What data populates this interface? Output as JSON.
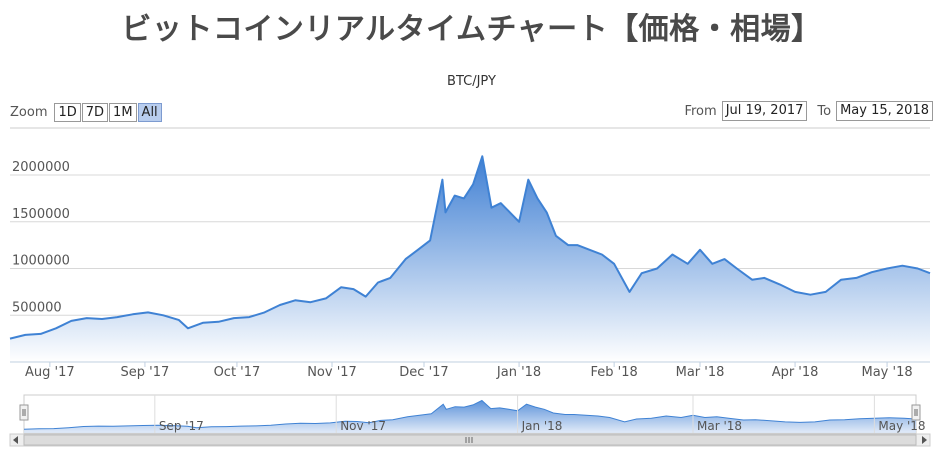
{
  "title": "ビットコインリアルタイムチャート【価格・相場】",
  "subtitle": "BTC/JPY",
  "zoom": {
    "label": "Zoom",
    "buttons": [
      "1D",
      "7D",
      "1M",
      "All"
    ],
    "active": "All"
  },
  "range": {
    "from_label": "From",
    "from_value": "Jul 19, 2017",
    "to_label": "To",
    "to_value": "May 15, 2018"
  },
  "colors": {
    "line": "#3f82d4",
    "fill_top": "#3f7fd3",
    "fill_bottom": "#ffffff",
    "grid": "#d8d8d8"
  },
  "chart_data": {
    "type": "area",
    "title": "",
    "subtitle": "BTC/JPY",
    "xlabel": "",
    "ylabel": "",
    "ylim": [
      0,
      2000000
    ],
    "yticks": [
      0,
      500000,
      1000000,
      1500000,
      2000000
    ],
    "xticks": [
      {
        "label": "Aug '17",
        "date": "2017-08-01"
      },
      {
        "label": "Sep '17",
        "date": "2017-09-01"
      },
      {
        "label": "Oct '17",
        "date": "2017-10-01"
      },
      {
        "label": "Nov '17",
        "date": "2017-11-01"
      },
      {
        "label": "Dec '17",
        "date": "2017-12-01"
      },
      {
        "label": "Jan '18",
        "date": "2018-01-01"
      },
      {
        "label": "Feb '18",
        "date": "2018-02-01"
      },
      {
        "label": "Mar '18",
        "date": "2018-03-01"
      },
      {
        "label": "Apr '18",
        "date": "2018-04-01"
      },
      {
        "label": "May '18",
        "date": "2018-05-01"
      }
    ],
    "xrange": [
      "2017-07-19",
      "2018-05-15"
    ],
    "navigator_ticks": [
      "Sep '17",
      "Nov '17",
      "Jan '18",
      "Mar '18",
      "May '18"
    ],
    "grid": true,
    "legend": "none",
    "series": [
      {
        "x": [
          "2017-07-19",
          "2017-07-24",
          "2017-07-29",
          "2017-08-03",
          "2017-08-08",
          "2017-08-13",
          "2017-08-18",
          "2017-08-23",
          "2017-08-28",
          "2017-09-02",
          "2017-09-07",
          "2017-09-12",
          "2017-09-15",
          "2017-09-20",
          "2017-09-25",
          "2017-09-30",
          "2017-10-05",
          "2017-10-10",
          "2017-10-15",
          "2017-10-20",
          "2017-10-25",
          "2017-10-30",
          "2017-11-04",
          "2017-11-08",
          "2017-11-12",
          "2017-11-16",
          "2017-11-20",
          "2017-11-25",
          "2017-11-29",
          "2017-12-03",
          "2017-12-07",
          "2017-12-08",
          "2017-12-11",
          "2017-12-14",
          "2017-12-17",
          "2017-12-20",
          "2017-12-23",
          "2017-12-26",
          "2017-12-29",
          "2018-01-01",
          "2018-01-04",
          "2018-01-07",
          "2018-01-10",
          "2018-01-13",
          "2018-01-17",
          "2018-01-20",
          "2018-01-24",
          "2018-01-28",
          "2018-02-01",
          "2018-02-06",
          "2018-02-10",
          "2018-02-15",
          "2018-02-20",
          "2018-02-25",
          "2018-03-01",
          "2018-03-05",
          "2018-03-09",
          "2018-03-13",
          "2018-03-18",
          "2018-03-22",
          "2018-03-27",
          "2018-04-01",
          "2018-04-06",
          "2018-04-11",
          "2018-04-16",
          "2018-04-21",
          "2018-04-26",
          "2018-05-01",
          "2018-05-06",
          "2018-05-11",
          "2018-05-15"
        ],
        "values": [
          250000,
          290000,
          300000,
          360000,
          440000,
          470000,
          460000,
          480000,
          510000,
          530000,
          500000,
          450000,
          360000,
          420000,
          430000,
          470000,
          480000,
          530000,
          610000,
          660000,
          640000,
          680000,
          800000,
          780000,
          700000,
          850000,
          900000,
          1100000,
          1200000,
          1300000,
          1950000,
          1600000,
          1780000,
          1750000,
          1900000,
          2200000,
          1650000,
          1700000,
          1600000,
          1500000,
          1950000,
          1750000,
          1600000,
          1350000,
          1250000,
          1250000,
          1200000,
          1150000,
          1050000,
          750000,
          950000,
          1000000,
          1150000,
          1050000,
          1200000,
          1050000,
          1100000,
          1000000,
          880000,
          900000,
          830000,
          750000,
          720000,
          750000,
          880000,
          900000,
          960000,
          1000000,
          1030000,
          1000000,
          950000
        ]
      }
    ]
  }
}
